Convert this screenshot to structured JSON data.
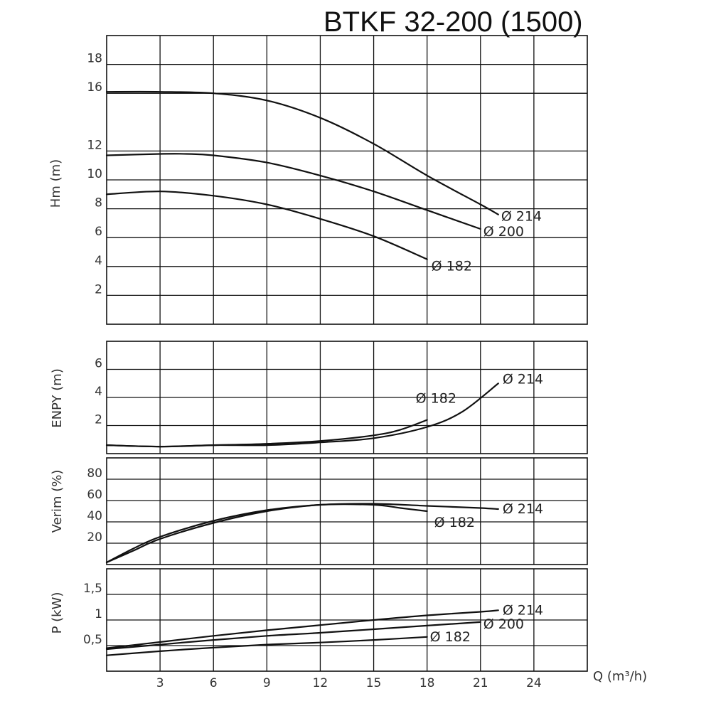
{
  "title": "BTKF 32-200 (1500)",
  "chart_data": [
    {
      "type": "line",
      "ylabel": "Hm (m)",
      "xlim": [
        0,
        27
      ],
      "ylim": [
        0,
        20
      ],
      "x_ticks": [
        3,
        6,
        9,
        12,
        15,
        18,
        21,
        24
      ],
      "y_ticks": [
        2,
        4,
        6,
        8,
        10,
        12,
        16,
        18
      ],
      "y_tick_labels": [
        "2",
        "4",
        "6",
        "8",
        "10",
        "12",
        "16",
        "18"
      ],
      "grid": true,
      "series": [
        {
          "name": "Ø 214",
          "x": [
            0,
            3,
            6,
            9,
            12,
            15,
            18,
            21,
            22
          ],
          "y": [
            16.1,
            16.1,
            16.0,
            15.5,
            14.3,
            12.5,
            10.3,
            8.3,
            7.6
          ]
        },
        {
          "name": "Ø 200",
          "x": [
            0,
            3,
            4.5,
            6,
            9,
            12,
            15,
            18,
            21
          ],
          "y": [
            11.7,
            11.8,
            11.8,
            11.7,
            11.2,
            10.3,
            9.2,
            7.9,
            6.6
          ]
        },
        {
          "name": "Ø 182",
          "x": [
            0,
            3,
            6,
            9,
            12,
            15,
            18
          ],
          "y": [
            9.0,
            9.2,
            8.9,
            8.3,
            7.3,
            6.1,
            4.5
          ]
        }
      ]
    },
    {
      "type": "line",
      "ylabel": "ENPY (m)",
      "xlim": [
        0,
        27
      ],
      "ylim": [
        0,
        8
      ],
      "y_ticks": [
        2,
        4,
        6
      ],
      "y_tick_labels": [
        "2",
        "4",
        "6"
      ],
      "grid": true,
      "series": [
        {
          "name": "Ø 214",
          "x": [
            0,
            3,
            6,
            9,
            12,
            15,
            18,
            20,
            22
          ],
          "y": [
            0.6,
            0.5,
            0.6,
            0.6,
            0.8,
            1.1,
            1.9,
            3.0,
            5.0
          ]
        },
        {
          "name": "Ø 182",
          "x": [
            0,
            3,
            6,
            9,
            12,
            15,
            16.5,
            18
          ],
          "y": [
            0.6,
            0.5,
            0.6,
            0.7,
            0.9,
            1.3,
            1.7,
            2.4
          ]
        }
      ]
    },
    {
      "type": "line",
      "ylabel": "Verim (%)",
      "xlim": [
        0,
        27
      ],
      "ylim": [
        0,
        100
      ],
      "y_ticks": [
        20,
        40,
        60,
        80
      ],
      "y_tick_labels": [
        "20",
        "40",
        "60",
        "80"
      ],
      "grid": true,
      "series": [
        {
          "name": "Ø 214",
          "x": [
            0,
            1.5,
            3,
            6,
            9,
            12,
            15,
            18,
            21,
            22
          ],
          "y": [
            2,
            15,
            26,
            41,
            51,
            56,
            57,
            55,
            53,
            52
          ]
        },
        {
          "name": "Ø 182",
          "x": [
            0,
            1.5,
            3,
            6,
            9,
            12,
            15,
            16.5,
            18
          ],
          "y": [
            2,
            13,
            24,
            39,
            50,
            56,
            56,
            53,
            50
          ]
        }
      ]
    },
    {
      "type": "line",
      "xlabel": "Q (m³/h)",
      "ylabel": "P (kW)",
      "xlim": [
        0,
        27
      ],
      "ylim": [
        0,
        2
      ],
      "y_ticks": [
        0.5,
        1,
        1.5
      ],
      "y_tick_labels": [
        "0,5",
        "1",
        "1,5"
      ],
      "grid": true,
      "x_tick_labels": [
        "3",
        "6",
        "9",
        "12",
        "15",
        "18",
        "21",
        "24"
      ],
      "series": [
        {
          "name": "Ø 214",
          "x": [
            0,
            3,
            6,
            9,
            12,
            15,
            18,
            21,
            22
          ],
          "y": [
            0.45,
            0.57,
            0.69,
            0.8,
            0.9,
            1.0,
            1.09,
            1.16,
            1.19
          ]
        },
        {
          "name": "Ø 200",
          "x": [
            0,
            3,
            6,
            9,
            12,
            15,
            18,
            21
          ],
          "y": [
            0.43,
            0.52,
            0.61,
            0.69,
            0.75,
            0.82,
            0.89,
            0.96
          ]
        },
        {
          "name": "Ø 182",
          "x": [
            0,
            3,
            6,
            9,
            12,
            15,
            18
          ],
          "y": [
            0.31,
            0.39,
            0.46,
            0.52,
            0.56,
            0.61,
            0.67
          ]
        }
      ]
    }
  ]
}
